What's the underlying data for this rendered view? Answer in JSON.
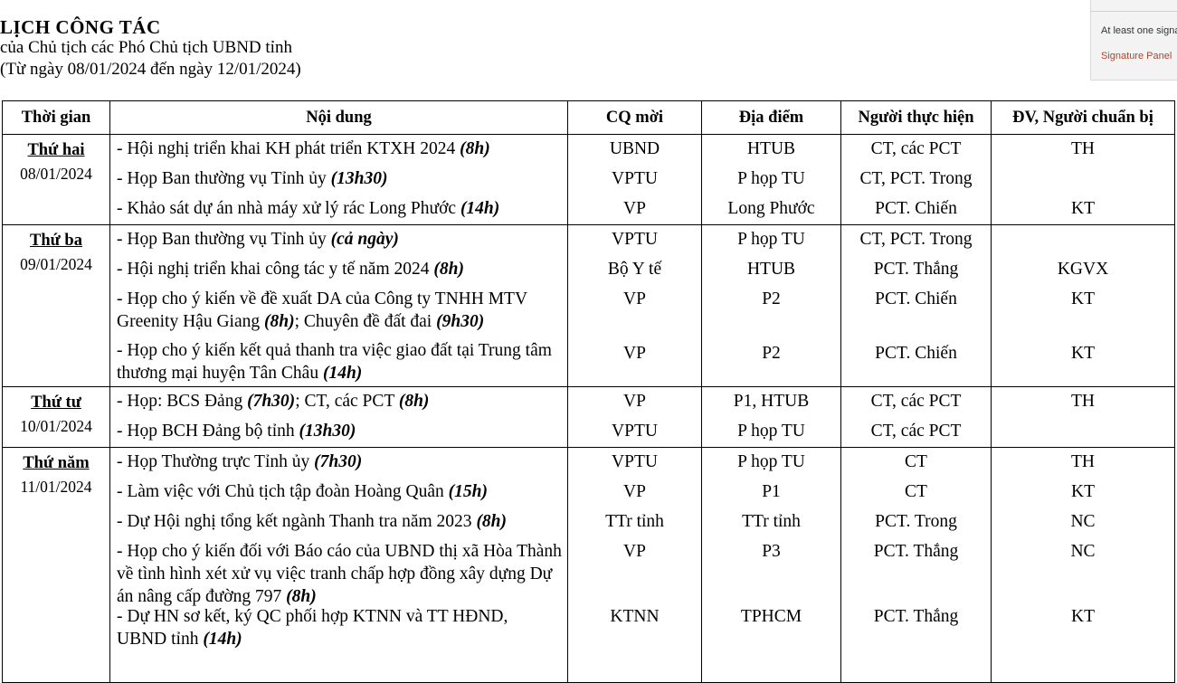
{
  "header": {
    "title": "LỊCH  CÔNG TÁC",
    "subtitle": "của Chủ tịch các Phó Chủ tịch UBND tỉnh",
    "date_range": "(Từ ngày 08/01/2024 đến ngày 12/01/2024)"
  },
  "signature_panel": {
    "notice": "At least one signature",
    "link": "Signature Panel"
  },
  "table": {
    "columns": [
      "Thời gian",
      "Nội dung",
      "CQ mời",
      "Địa điểm",
      "Người thực hiện",
      "ĐV, Người chuẩn bị"
    ],
    "days": [
      {
        "name": "Thứ hai",
        "date": "08/01/2024",
        "items": [
          {
            "text": "- Hội nghị triển khai KH phát triển KTXH 2024 ",
            "time": "(8h)",
            "org": "UBND",
            "place": "HTUB",
            "person": "CT, các PCT",
            "prep": "TH"
          },
          {
            "text": "- Họp Ban thường vụ Tỉnh ủy ",
            "time": "(13h30)",
            "org": "VPTU",
            "place": "P họp TU",
            "person": "CT, PCT. Trong",
            "prep": ""
          },
          {
            "text": "- Khảo sát dự án nhà máy xử lý rác Long Phước ",
            "time": "(14h)",
            "org": "VP",
            "place": "Long Phước",
            "person": "PCT. Chiến",
            "prep": "KT"
          }
        ]
      },
      {
        "name": "Thứ ba",
        "date": "09/01/2024",
        "items": [
          {
            "text": "- Họp Ban thường vụ Tỉnh ủy ",
            "time": "(cả ngày)",
            "org": "VPTU",
            "place": "P họp TU",
            "person": "CT, PCT. Trong",
            "prep": ""
          },
          {
            "text": "-  Hội nghị triển khai công tác y tế năm 2024 ",
            "time": "(8h)",
            "org": "Bộ Y tế",
            "place": "HTUB",
            "person": "PCT. Thắng",
            "prep": "KGVX"
          },
          {
            "text": "- Họp cho ý kiến về đề xuất DA của Công ty TNHH MTV Greenity Hậu Giang ",
            "time": "(8h)",
            "text2": "; Chuyên đề đất đai ",
            "time2": "(9h30)",
            "org": "VP",
            "place": "P2",
            "person": "PCT. Chiến",
            "prep": "KT"
          },
          {
            "text": "- Họp cho ý kiến kết quả thanh tra việc giao đất tại Trung tâm thương mại huyện Tân Châu ",
            "time": "(14h)",
            "org": "VP",
            "place": "P2",
            "person": "PCT. Chiến",
            "prep": "KT"
          }
        ]
      },
      {
        "name": "Thứ tư",
        "date": "10/01/2024",
        "items": [
          {
            "text": "- Họp: BCS Đảng ",
            "time": "(7h30)",
            "text2": "; CT, các PCT ",
            "time2": "(8h)",
            "org": "VP",
            "place": "P1, HTUB",
            "person": "CT, các PCT",
            "prep": "TH"
          },
          {
            "text": "- Họp BCH Đảng bộ tỉnh ",
            "time": "(13h30)",
            "org": "VPTU",
            "place": "P họp TU",
            "person": "CT, các PCT",
            "prep": ""
          }
        ]
      },
      {
        "name": "Thứ năm",
        "date": "11/01/2024",
        "items": [
          {
            "text": "- Họp Thường trực Tỉnh ủy ",
            "time": "(7h30)",
            "org": "VPTU",
            "place": "P họp TU",
            "person": "CT",
            "prep": "TH"
          },
          {
            "text": "- Làm việc với Chủ tịch tập đoàn Hoàng Quân ",
            "time": "(15h)",
            "org": "VP",
            "place": "P1",
            "person": "CT",
            "prep": "KT"
          },
          {
            "text": "-  Dự Hội nghị tổng kết ngành Thanh tra năm 2023 ",
            "time": "(8h)",
            "org": "TTr tỉnh",
            "place": "TTr tỉnh",
            "person": "PCT. Trong",
            "prep": "NC"
          },
          {
            "text": "- Họp  cho ý kiến đối với Báo cáo của UBND thị xã Hòa Thành về tình hình xét xử vụ việc tranh chấp hợp đồng xây dựng Dự án nâng cấp đường 797 ",
            "time": "(8h)",
            "org": "VP",
            "place": "P3",
            "person": "PCT. Thắng",
            "prep": "NC"
          },
          {
            "text": "- Dự HN sơ kết, ký QC phối hợp KTNN và TT HĐND, UBND tỉnh ",
            "time": "(14h)",
            "org": "KTNN",
            "place": "TPHCM",
            "person": "PCT. Thắng",
            "prep": "KT"
          }
        ]
      }
    ]
  }
}
